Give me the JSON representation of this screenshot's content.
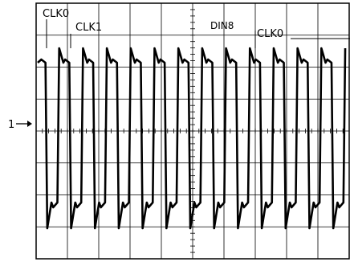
{
  "screen": {
    "colors": {
      "background": "#ffffff",
      "trace": "#000000",
      "grid": "#000000"
    },
    "channel_marker": {
      "label": "1",
      "icon": "arrow-right-icon"
    },
    "annotations": [
      {
        "text": "CLK0"
      },
      {
        "text": "CLK1"
      },
      {
        "text": "DIN8"
      },
      {
        "text": "CLK0"
      }
    ],
    "trace_pattern": [
      1,
      0,
      1,
      0,
      1,
      0,
      1,
      0,
      1,
      0,
      1,
      0,
      1,
      0,
      1,
      0,
      1,
      0,
      1,
      0,
      1,
      0,
      1,
      0,
      1,
      0
    ]
  }
}
